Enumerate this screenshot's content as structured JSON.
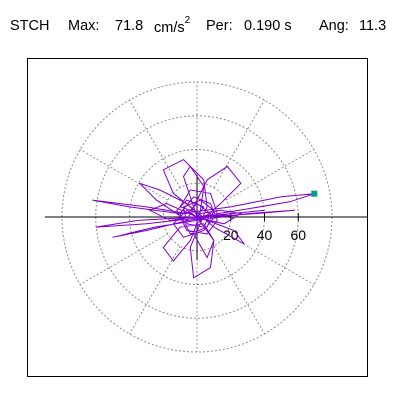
{
  "header": {
    "station": "STCH",
    "max_label": "Max:",
    "max_value": "71.8",
    "max_unit": "cm/s",
    "max_unit_exp": "2",
    "per_label": "Per:",
    "per_value": "0.190 s",
    "ang_label": "Ang:",
    "ang_value": "11.3"
  },
  "chart_data": {
    "type": "polar-orbit",
    "radial_ticks": [
      "20",
      "40",
      "60"
    ],
    "radial_tick_values": [
      20,
      40,
      60
    ],
    "rmax": 80,
    "grid_rings": [
      20,
      40,
      60,
      80
    ],
    "spoke_angles_deg": [
      0,
      30,
      60,
      90,
      120,
      150,
      180,
      210,
      240,
      270,
      300,
      330
    ],
    "peak_marker": {
      "x": 69.5,
      "y": 13.8,
      "color": "#00a080"
    },
    "trace_color": "#8000d0",
    "trace": [
      [
        0,
        0
      ],
      [
        4,
        6
      ],
      [
        -6,
        10
      ],
      [
        -12,
        4
      ],
      [
        -6,
        -8
      ],
      [
        6,
        -10
      ],
      [
        12,
        -2
      ],
      [
        8,
        8
      ],
      [
        -2,
        12
      ],
      [
        -10,
        2
      ],
      [
        -4,
        -10
      ],
      [
        6,
        -6
      ],
      [
        10,
        4
      ],
      [
        2,
        10
      ],
      [
        -8,
        6
      ],
      [
        -6,
        -4
      ],
      [
        4,
        -6
      ],
      [
        8,
        2
      ],
      [
        0,
        8
      ],
      [
        -6,
        2
      ],
      [
        -30,
        6
      ],
      [
        -62,
        10
      ],
      [
        -40,
        6
      ],
      [
        -10,
        2
      ],
      [
        20,
        6
      ],
      [
        50,
        12
      ],
      [
        69.5,
        13.8
      ],
      [
        55,
        9
      ],
      [
        25,
        4
      ],
      [
        0,
        0
      ],
      [
        -35,
        -2
      ],
      [
        -60,
        -6
      ],
      [
        -30,
        -4
      ],
      [
        5,
        0
      ],
      [
        35,
        2
      ],
      [
        58,
        4
      ],
      [
        30,
        2
      ],
      [
        0,
        -2
      ],
      [
        -25,
        -6
      ],
      [
        -50,
        -12
      ],
      [
        -30,
        -8
      ],
      [
        -5,
        -2
      ],
      [
        20,
        2
      ],
      [
        40,
        4
      ],
      [
        20,
        2
      ],
      [
        0,
        0
      ],
      [
        -8,
        24
      ],
      [
        -4,
        30
      ],
      [
        4,
        18
      ],
      [
        2,
        4
      ],
      [
        -2,
        -10
      ],
      [
        6,
        -24
      ],
      [
        10,
        -14
      ],
      [
        4,
        -4
      ],
      [
        -10,
        -6
      ],
      [
        -20,
        -18
      ],
      [
        -14,
        -26
      ],
      [
        -4,
        -14
      ],
      [
        0,
        -4
      ],
      [
        14,
        8
      ],
      [
        26,
        20
      ],
      [
        18,
        30
      ],
      [
        6,
        22
      ],
      [
        0,
        10
      ],
      [
        -6,
        -2
      ],
      [
        -24,
        10
      ],
      [
        -34,
        20
      ],
      [
        -22,
        16
      ],
      [
        -6,
        8
      ],
      [
        10,
        -6
      ],
      [
        28,
        -16
      ],
      [
        22,
        -8
      ],
      [
        6,
        -2
      ],
      [
        -14,
        14
      ],
      [
        -20,
        28
      ],
      [
        -8,
        34
      ],
      [
        4,
        22
      ],
      [
        6,
        6
      ],
      [
        -4,
        -18
      ],
      [
        -2,
        -36
      ],
      [
        8,
        -30
      ],
      [
        10,
        -14
      ],
      [
        0,
        0
      ],
      [
        -18,
        8
      ],
      [
        -28,
        4
      ],
      [
        -16,
        -2
      ],
      [
        -2,
        0
      ],
      [
        16,
        -4
      ],
      [
        26,
        2
      ],
      [
        14,
        4
      ],
      [
        2,
        2
      ],
      [
        -10,
        6
      ],
      [
        -4,
        16
      ],
      [
        8,
        14
      ],
      [
        12,
        2
      ],
      [
        4,
        -8
      ],
      [
        -8,
        -12
      ],
      [
        -14,
        -4
      ],
      [
        -6,
        4
      ],
      [
        0,
        0
      ]
    ]
  }
}
